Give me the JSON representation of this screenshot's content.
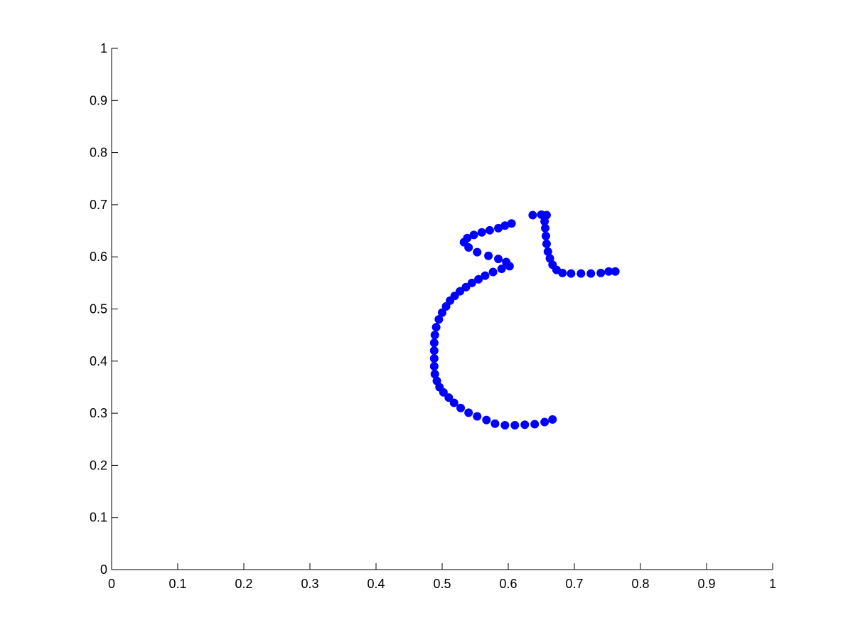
{
  "chart_data": {
    "type": "scatter",
    "title": "",
    "xlabel": "",
    "ylabel": "",
    "xlim": [
      0,
      1
    ],
    "ylim": [
      0,
      1
    ],
    "grid": false,
    "box": "left-bottom",
    "x_ticks": [
      "0",
      "0.1",
      "0.2",
      "0.3",
      "0.4",
      "0.5",
      "0.6",
      "0.7",
      "0.8",
      "0.9",
      "1"
    ],
    "y_ticks": [
      "0",
      "0.1",
      "0.2",
      "0.3",
      "0.4",
      "0.5",
      "0.6",
      "0.7",
      "0.8",
      "0.9",
      "1"
    ],
    "marker_color": "#0000ff",
    "series": [
      {
        "name": "",
        "points": [
          [
            0.605,
            0.664
          ],
          [
            0.595,
            0.66
          ],
          [
            0.585,
            0.655
          ],
          [
            0.572,
            0.651
          ],
          [
            0.56,
            0.647
          ],
          [
            0.548,
            0.642
          ],
          [
            0.538,
            0.636
          ],
          [
            0.533,
            0.628
          ],
          [
            0.54,
            0.618
          ],
          [
            0.553,
            0.609
          ],
          [
            0.57,
            0.602
          ],
          [
            0.585,
            0.596
          ],
          [
            0.597,
            0.59
          ],
          [
            0.602,
            0.582
          ],
          [
            0.59,
            0.577
          ],
          [
            0.577,
            0.571
          ],
          [
            0.565,
            0.564
          ],
          [
            0.555,
            0.557
          ],
          [
            0.545,
            0.55
          ],
          [
            0.536,
            0.542
          ],
          [
            0.527,
            0.534
          ],
          [
            0.519,
            0.525
          ],
          [
            0.512,
            0.516
          ],
          [
            0.506,
            0.505
          ],
          [
            0.5,
            0.493
          ],
          [
            0.495,
            0.48
          ],
          [
            0.491,
            0.465
          ],
          [
            0.489,
            0.45
          ],
          [
            0.488,
            0.435
          ],
          [
            0.488,
            0.42
          ],
          [
            0.488,
            0.405
          ],
          [
            0.488,
            0.39
          ],
          [
            0.489,
            0.375
          ],
          [
            0.492,
            0.362
          ],
          [
            0.496,
            0.35
          ],
          [
            0.502,
            0.34
          ],
          [
            0.51,
            0.33
          ],
          [
            0.518,
            0.32
          ],
          [
            0.528,
            0.31
          ],
          [
            0.54,
            0.301
          ],
          [
            0.553,
            0.294
          ],
          [
            0.567,
            0.287
          ],
          [
            0.58,
            0.28
          ],
          [
            0.595,
            0.277
          ],
          [
            0.61,
            0.277
          ],
          [
            0.625,
            0.278
          ],
          [
            0.64,
            0.279
          ],
          [
            0.655,
            0.283
          ],
          [
            0.667,
            0.288
          ],
          [
            0.637,
            0.68
          ],
          [
            0.65,
            0.681
          ],
          [
            0.658,
            0.68
          ],
          [
            0.655,
            0.668
          ],
          [
            0.656,
            0.655
          ],
          [
            0.657,
            0.64
          ],
          [
            0.658,
            0.625
          ],
          [
            0.66,
            0.61
          ],
          [
            0.663,
            0.597
          ],
          [
            0.667,
            0.585
          ],
          [
            0.673,
            0.575
          ],
          [
            0.682,
            0.569
          ],
          [
            0.695,
            0.568
          ],
          [
            0.71,
            0.568
          ],
          [
            0.725,
            0.568
          ],
          [
            0.74,
            0.569
          ],
          [
            0.752,
            0.572
          ],
          [
            0.762,
            0.572
          ]
        ]
      }
    ]
  }
}
